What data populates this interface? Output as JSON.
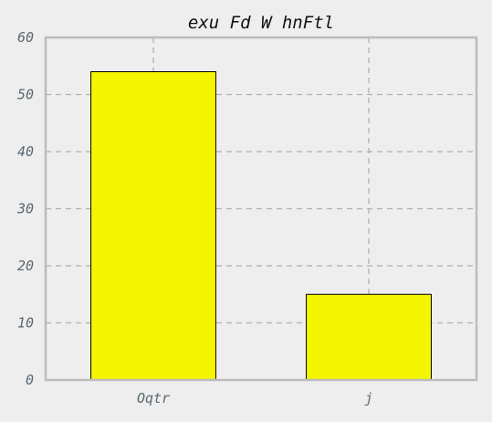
{
  "chart_data": {
    "type": "bar",
    "title": "exu Fd W hnFtl",
    "xlabel": "",
    "ylabel": "",
    "categories": [
      "Oqtr",
      "j"
    ],
    "values": [
      54,
      15
    ],
    "ylim": [
      0,
      60
    ],
    "yticks": [
      "0",
      "10",
      "20",
      "30",
      "40",
      "50",
      "60"
    ],
    "grid": true,
    "bar_color": "#f5f500",
    "background": "#eeeeee"
  }
}
